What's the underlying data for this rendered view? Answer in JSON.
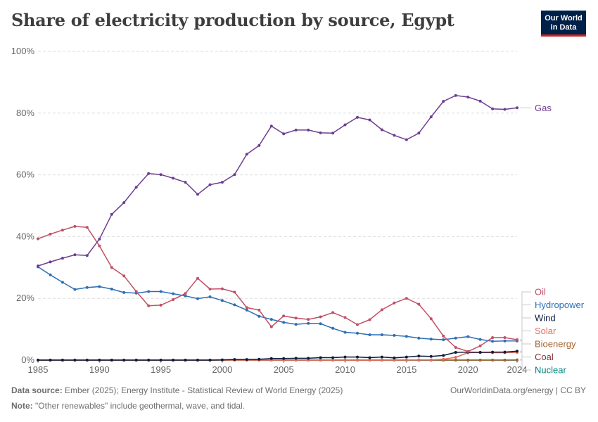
{
  "header": {
    "title": "Share of electricity production by source, Egypt",
    "logo_line1": "Our World",
    "logo_line2": "in Data"
  },
  "footer": {
    "source_label": "Data source:",
    "source_text": "Ember (2025); Energy Institute - Statistical Review of World Energy (2025)",
    "url_text": "OurWorldinData.org/energy | CC BY",
    "note_label": "Note:",
    "note_text": "\"Other renewables\" include geothermal, wave, and tidal."
  },
  "chart_data": {
    "type": "line",
    "ylim": [
      0,
      100
    ],
    "xlim": [
      1985,
      2024
    ],
    "y_ticks": [
      0,
      20,
      40,
      60,
      80,
      100
    ],
    "y_tick_labels": [
      "0%",
      "20%",
      "40%",
      "60%",
      "80%",
      "100%"
    ],
    "x_ticks": [
      1985,
      1990,
      1995,
      2000,
      2005,
      2010,
      2015,
      2020,
      2024
    ],
    "x_tick_labels": [
      "1985",
      "1990",
      "1995",
      "2000",
      "2005",
      "2010",
      "2015",
      "2020",
      "2024"
    ],
    "grid": "horizontal dashed",
    "legend": "right (end labels)",
    "x": [
      1985,
      1986,
      1987,
      1988,
      1989,
      1990,
      1991,
      1992,
      1993,
      1994,
      1995,
      1996,
      1997,
      1998,
      1999,
      2000,
      2001,
      2002,
      2003,
      2004,
      2005,
      2006,
      2007,
      2008,
      2009,
      2010,
      2011,
      2012,
      2013,
      2014,
      2015,
      2016,
      2017,
      2018,
      2019,
      2020,
      2021,
      2022,
      2023,
      2024
    ],
    "series": [
      {
        "name": "Gas",
        "color": "#6d3e91",
        "values": [
          30.5,
          31.8,
          33.0,
          34.1,
          33.9,
          39.2,
          47.2,
          51.0,
          56.0,
          60.4,
          60.1,
          58.9,
          57.6,
          53.7,
          56.8,
          57.6,
          60.1,
          66.7,
          69.5,
          75.8,
          73.3,
          74.5,
          74.5,
          73.6,
          73.5,
          76.2,
          78.6,
          77.8,
          74.6,
          72.8,
          71.4,
          73.5,
          78.8,
          83.8,
          85.7,
          85.2,
          83.9,
          81.4,
          81.2,
          81.7
        ]
      },
      {
        "name": "Oil",
        "color": "#c15065",
        "values": [
          39.3,
          40.8,
          42.1,
          43.3,
          43.0,
          37.0,
          30.0,
          27.3,
          22.2,
          17.6,
          17.8,
          19.6,
          21.6,
          26.5,
          23.0,
          23.1,
          22.0,
          17.0,
          16.2,
          10.8,
          14.3,
          13.6,
          13.2,
          14.0,
          15.4,
          13.8,
          11.5,
          13.1,
          16.3,
          18.5,
          20.0,
          18.1,
          13.4,
          7.8,
          4.1,
          2.8,
          4.6,
          7.3,
          7.3,
          6.6
        ]
      },
      {
        "name": "Hydropower",
        "color": "#2c6fb5",
        "values": [
          30.2,
          27.6,
          25.2,
          22.9,
          23.5,
          23.8,
          23.0,
          21.9,
          21.7,
          22.2,
          22.2,
          21.5,
          20.8,
          19.9,
          20.5,
          19.3,
          17.9,
          16.2,
          14.2,
          13.2,
          12.2,
          11.6,
          11.9,
          11.8,
          10.3,
          9.0,
          8.7,
          8.2,
          8.2,
          8.0,
          7.7,
          7.1,
          6.8,
          6.6,
          7.1,
          7.6,
          6.7,
          6.1,
          6.2,
          6.2
        ]
      },
      {
        "name": "Wind",
        "color": "#0d1b3e",
        "values": [
          0,
          0,
          0,
          0,
          0,
          0,
          0,
          0,
          0,
          0,
          0,
          0,
          0,
          0,
          0,
          0.1,
          0.2,
          0.2,
          0.3,
          0.5,
          0.5,
          0.6,
          0.6,
          0.8,
          0.8,
          1.0,
          1.0,
          0.8,
          1.0,
          0.7,
          1.0,
          1.3,
          1.2,
          1.5,
          2.5,
          2.6,
          2.5,
          2.6,
          2.6,
          2.9
        ]
      },
      {
        "name": "Solar",
        "color": "#e26e5c",
        "values": [
          0,
          0,
          0,
          0,
          0,
          0,
          0,
          0,
          0,
          0,
          0,
          0,
          0,
          0,
          0,
          0,
          0,
          0,
          0,
          0,
          0,
          0,
          0,
          0,
          0,
          0,
          0,
          0,
          0,
          0,
          0,
          0.1,
          0.1,
          0.3,
          0.9,
          2.4,
          2.5,
          2.4,
          2.4,
          2.5
        ]
      },
      {
        "name": "Bioenergy",
        "color": "#a2662c",
        "values": [
          0,
          0,
          0,
          0,
          0,
          0,
          0,
          0,
          0,
          0,
          0,
          0,
          0,
          0,
          0,
          0,
          0,
          0,
          0,
          0,
          0,
          0,
          0,
          0,
          0,
          0,
          0,
          0,
          0,
          0,
          0,
          0,
          0,
          0,
          0,
          0,
          0,
          0,
          0,
          0.1
        ]
      },
      {
        "name": "Coal",
        "color": "#883039",
        "values": [
          0,
          0,
          0,
          0,
          0,
          0,
          0,
          0,
          0,
          0,
          0,
          0,
          0,
          0,
          0,
          0,
          0,
          0,
          0,
          0,
          0,
          0,
          0,
          0,
          0,
          0,
          0,
          0,
          0,
          0,
          0,
          0,
          0,
          0,
          0,
          0,
          0,
          0,
          0,
          0
        ]
      },
      {
        "name": "Nuclear",
        "color": "#00847e",
        "values": [
          0,
          0,
          0,
          0,
          0,
          0,
          0,
          0,
          0,
          0,
          0,
          0,
          0,
          0,
          0,
          0,
          0,
          0,
          0,
          0,
          0,
          0,
          0,
          0,
          0,
          0,
          0,
          0,
          0,
          0,
          0,
          0,
          0,
          0,
          0,
          0,
          0,
          0,
          0,
          0
        ]
      }
    ]
  }
}
